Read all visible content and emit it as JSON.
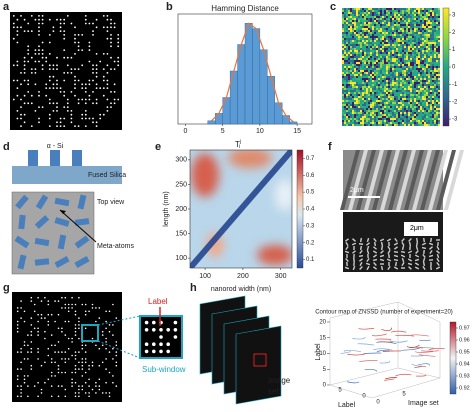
{
  "panels": {
    "a": {
      "label": "a"
    },
    "b": {
      "label": "b",
      "type": "histogram",
      "title": "Hamming Distance",
      "bins": [
        3,
        4,
        5,
        6,
        7,
        8,
        9,
        10,
        11,
        12,
        13,
        14,
        15
      ],
      "counts": [
        3,
        10,
        25,
        50,
        75,
        95,
        90,
        70,
        45,
        20,
        8,
        2
      ],
      "xlim": [
        -1,
        17
      ],
      "xticks": [
        0,
        5,
        10,
        15
      ],
      "ylim": [
        0,
        100
      ],
      "bar_color": "#5b9bd5",
      "curve_color": "#e8743b"
    },
    "c": {
      "label": "c",
      "colorbar_ticks": [
        3,
        2,
        1,
        0,
        -1,
        -2,
        -3
      ],
      "colorbar_lim": [
        -3.4,
        3.4
      ]
    },
    "d": {
      "label": "d",
      "layer_top": "α - Si",
      "substrate": "Fused Silica",
      "top_view": "Top view",
      "meta_atoms": "Meta-atoms"
    },
    "e": {
      "label": "e",
      "title": "T",
      "title_sub": "i",
      "title_sup": "j",
      "xlabel": "nanorod width (nm)",
      "ylabel": "length (nm)",
      "xlim": [
        60,
        330
      ],
      "xticks": [
        100,
        200,
        300
      ],
      "ylim": [
        80,
        320
      ],
      "yticks": [
        100,
        150,
        200,
        250,
        300
      ],
      "colorbar_lim": [
        0.05,
        0.75
      ],
      "colorbar_ticks": [
        0.1,
        0.2,
        0.3,
        0.4,
        0.5,
        0.6,
        0.7
      ]
    },
    "f": {
      "label": "f",
      "scale_top": "2μm",
      "scale_bottom": "2μm"
    },
    "g": {
      "label": "g",
      "marker": "Label",
      "subwindow": "Sub-window"
    },
    "h": {
      "label": "h",
      "image_set_lines": [
        "Image",
        "set"
      ],
      "title": "Contour map of ZNSSD (number of experiment=20)",
      "z_label": "Label",
      "x_label": "Label",
      "y_label": "Image set",
      "z_ticks": [
        0,
        5,
        10,
        15,
        20
      ],
      "x_ticks": [
        5,
        0
      ],
      "y_ticks": [
        0,
        5
      ],
      "colorbar_lim": [
        0.915,
        0.975
      ],
      "colorbar_ticks": [
        0.92,
        0.93,
        0.94,
        0.95,
        0.96,
        0.97
      ]
    }
  }
}
